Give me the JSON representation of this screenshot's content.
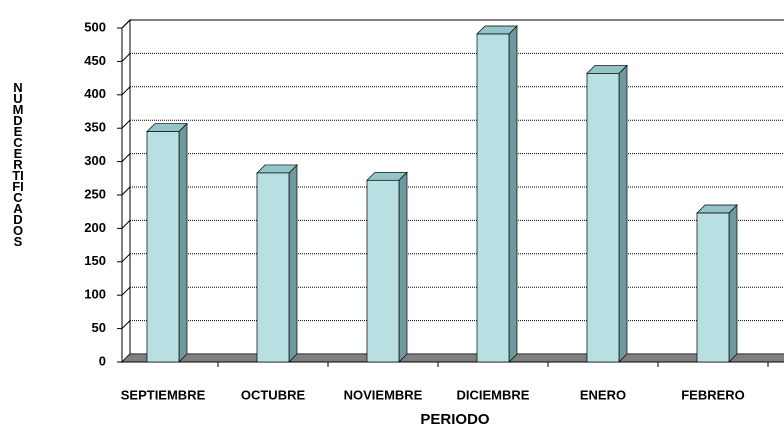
{
  "chart_data": {
    "type": "bar3d",
    "categories": [
      "SEPTIEMBRE",
      "OCTUBRE",
      "NOVIEMBRE",
      "DICIEMBRE",
      "ENERO",
      "FEBRERO"
    ],
    "values": [
      345,
      283,
      272,
      491,
      432,
      223
    ],
    "color": "#b8e0e3",
    "ylim": [
      0,
      500
    ],
    "yticks": [
      0,
      50,
      100,
      150,
      200,
      250,
      300,
      350,
      400,
      450,
      500
    ],
    "grid": true,
    "xlabel": "PERIODO",
    "ylabel": "NUM DE CERTIFICADOS"
  }
}
